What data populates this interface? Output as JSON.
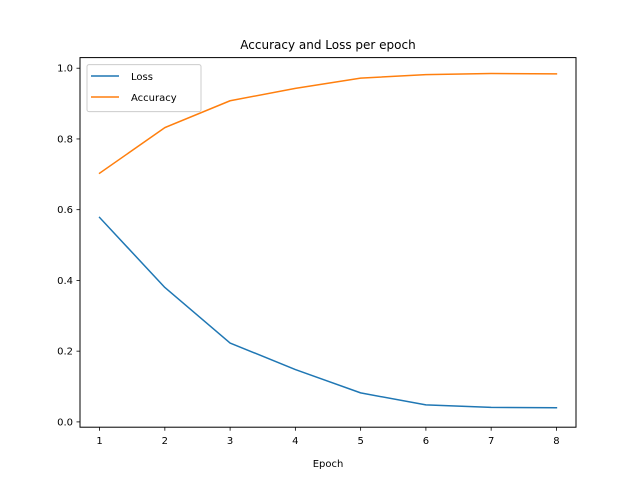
{
  "chart_data": {
    "type": "line",
    "title": "Accuracy and Loss per epoch",
    "xlabel": "Epoch",
    "ylabel": "",
    "x": [
      1,
      2,
      3,
      4,
      5,
      6,
      7,
      8
    ],
    "xlim": [
      0.7,
      8.3
    ],
    "ylim": [
      -0.015,
      1.03
    ],
    "xticks": [
      1,
      2,
      3,
      4,
      5,
      6,
      7,
      8
    ],
    "yticks": [
      0.0,
      0.2,
      0.4,
      0.6,
      0.8,
      1.0
    ],
    "ytick_labels": [
      "0.0",
      "0.2",
      "0.4",
      "0.6",
      "0.8",
      "1.0"
    ],
    "grid": false,
    "legend_position": "top-left",
    "series": [
      {
        "name": "Loss",
        "color": "#1f77b4",
        "values": [
          0.578,
          0.38,
          0.223,
          0.148,
          0.082,
          0.048,
          0.041,
          0.04
        ]
      },
      {
        "name": "Accuracy",
        "color": "#ff7f0e",
        "values": [
          0.703,
          0.832,
          0.908,
          0.943,
          0.972,
          0.982,
          0.985,
          0.984
        ]
      }
    ]
  }
}
